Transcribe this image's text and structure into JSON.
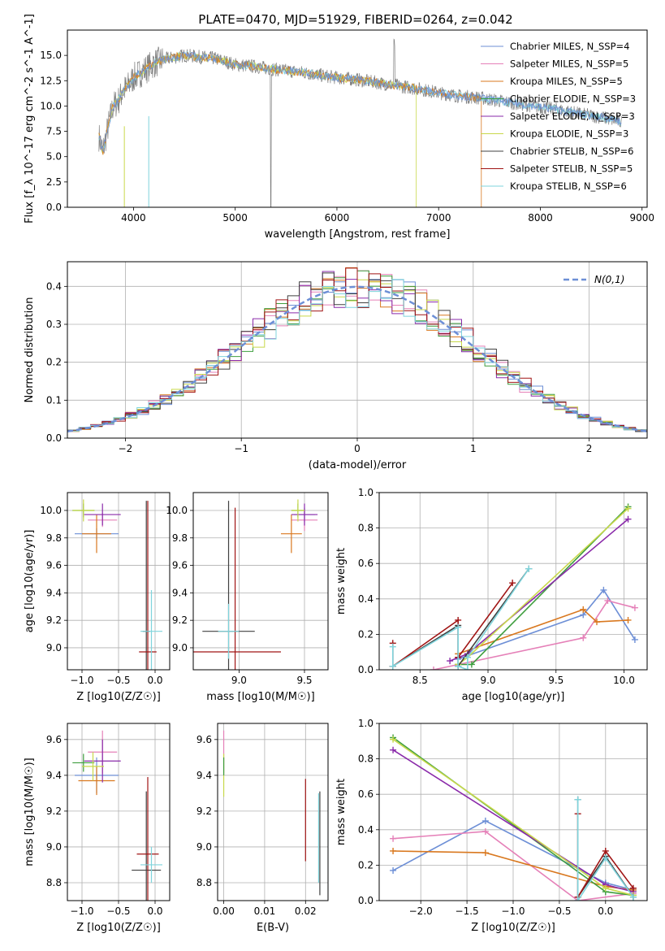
{
  "colors": [
    "#6d8fd6",
    "#e580b8",
    "#d9781f",
    "#3e9e3e",
    "#8a2aaa",
    "#c8d84a",
    "#404040",
    "#a01414",
    "#7fd4dc"
  ],
  "figure": {
    "title": "PLATE=0470, MJD=51929, FIBERID=0264, z=0.042",
    "legend": [
      "Chabrier MILES, N_SSP=4",
      "Salpeter MILES, N_SSP=5",
      "Kroupa MILES, N_SSP=5",
      "Chabrier ELODIE, N_SSP=3",
      "Salpeter ELODIE, N_SSP=3",
      "Kroupa ELODIE, N_SSP=3",
      "Chabrier STELIB, N_SSP=6",
      "Salpeter STELIB, N_SSP=5",
      "Kroupa STELIB, N_SSP=6"
    ]
  },
  "chart_data": [
    {
      "id": "spectrum",
      "type": "line",
      "xlabel": "wavelength [Angstrom, rest frame]",
      "ylabel": "Flux [f_λ 10^-17 erg cm^-2 s^-1 A^-1]",
      "xlim": [
        3350,
        9050
      ],
      "ylim": [
        0,
        17.5
      ],
      "xticks": [
        "4000",
        "5000",
        "6000",
        "7000",
        "8000",
        "9000"
      ],
      "yticks": [
        "0.0",
        "2.5",
        "5.0",
        "7.5",
        "10.0",
        "12.5",
        "15.0"
      ],
      "data_x": [
        3660,
        3700,
        3750,
        3800,
        3850,
        3900,
        3950,
        4000,
        4100,
        4200,
        4300,
        4400,
        4500,
        4600,
        4700,
        4800,
        4900,
        5000,
        5200,
        5400,
        5600,
        5800,
        6000,
        6200,
        6400,
        6600,
        6800,
        7000,
        7200,
        7400,
        7600,
        7800,
        8000,
        8200,
        8400,
        8600,
        8800
      ],
      "data_y": [
        7.0,
        5.5,
        8.0,
        10.0,
        10.5,
        11.5,
        12.0,
        12.8,
        13.5,
        14.2,
        14.6,
        14.8,
        15.0,
        14.9,
        14.8,
        14.7,
        14.4,
        14.1,
        13.9,
        13.6,
        13.4,
        13.1,
        12.8,
        12.6,
        12.3,
        12.0,
        11.7,
        11.3,
        11.0,
        10.8,
        10.5,
        10.2,
        9.9,
        9.6,
        9.2,
        8.9,
        8.4
      ],
      "grid": false
    },
    {
      "id": "residuals",
      "type": "step",
      "xlabel": "(data-model)/error",
      "ylabel": "Normed distribution",
      "xlim": [
        -2.5,
        2.5
      ],
      "ylim": [
        0,
        0.465
      ],
      "xticks": [
        "−2",
        "−1",
        "0",
        "1",
        "2"
      ],
      "yticks": [
        "0.0",
        "0.1",
        "0.2",
        "0.3",
        "0.4"
      ],
      "gaussian_label": "N(0,1)",
      "grid": true
    },
    {
      "id": "age-vs-Z",
      "type": "errorbar",
      "xlabel": "Z [log10(Z/Z☉)]",
      "ylabel": "age [log10(age/yr)]",
      "xlim": [
        -1.2,
        0.2
      ],
      "ylim": [
        8.84,
        10.13
      ],
      "xticks": [
        "−1.0",
        "−0.5",
        "0.0"
      ],
      "yticks": [
        "9.0",
        "9.2",
        "9.4",
        "9.6",
        "9.8",
        "10.0"
      ],
      "points": [
        {
          "c": 0,
          "x": -0.8,
          "y": 9.83,
          "xe": 0.3,
          "ye": 0.04
        },
        {
          "c": 1,
          "x": -0.72,
          "y": 9.93,
          "xe": 0.2,
          "ye": 0.05
        },
        {
          "c": 2,
          "x": -0.8,
          "y": 9.83,
          "xe": 0.2,
          "ye": 0.14
        },
        {
          "c": 3,
          "x": -0.98,
          "y": 10.0,
          "xe": 0.15,
          "ye": 0.05
        },
        {
          "c": 4,
          "x": -0.72,
          "y": 9.97,
          "xe": 0.25,
          "ye": 0.08
        },
        {
          "c": 5,
          "x": -0.98,
          "y": 10.0,
          "xe": 0.15,
          "ye": 0.08
        },
        {
          "c": 6,
          "x": -0.12,
          "y": 9.12,
          "xe": 0.05,
          "ye": 0.95
        },
        {
          "c": 7,
          "x": -0.1,
          "y": 8.97,
          "xe": 0.12,
          "ye": 1.1
        },
        {
          "c": 8,
          "x": -0.05,
          "y": 9.12,
          "xe": 0.15,
          "ye": 0.3
        }
      ],
      "grid": true
    },
    {
      "id": "age-vs-mass",
      "type": "errorbar",
      "xlabel": "mass [log10(M/M☉)]",
      "ylabel": "",
      "xlim": [
        8.65,
        9.68
      ],
      "ylim": [
        8.84,
        10.13
      ],
      "xticks": [
        "9.0",
        "9.5"
      ],
      "yticks": [
        "9.0",
        "9.2",
        "9.4",
        "9.6",
        "9.8",
        "10.0"
      ],
      "points": [
        {
          "c": 0,
          "x": 9.5,
          "y": 9.97,
          "xe": 0.08,
          "ye": 0.05
        },
        {
          "c": 1,
          "x": 9.5,
          "y": 9.93,
          "xe": 0.1,
          "ye": 0.08
        },
        {
          "c": 2,
          "x": 9.4,
          "y": 9.83,
          "xe": 0.08,
          "ye": 0.14
        },
        {
          "c": 3,
          "x": 9.45,
          "y": 10.0,
          "xe": 0.05,
          "ye": 0.05
        },
        {
          "c": 4,
          "x": 9.5,
          "y": 9.97,
          "xe": 0.1,
          "ye": 0.08
        },
        {
          "c": 5,
          "x": 9.45,
          "y": 10.0,
          "xe": 0.05,
          "ye": 0.08
        },
        {
          "c": 6,
          "x": 8.92,
          "y": 9.12,
          "xe": 0.2,
          "ye": 0.95
        },
        {
          "c": 7,
          "x": 8.97,
          "y": 8.97,
          "xe": 0.35,
          "ye": 1.05
        },
        {
          "c": 8,
          "x": 8.92,
          "y": 9.12,
          "xe": 0.08,
          "ye": 0.2
        }
      ],
      "grid": true
    },
    {
      "id": "weight-vs-age",
      "type": "line",
      "xlabel": "age [log10(age/yr)]",
      "ylabel": "mass weight",
      "xlim": [
        8.2,
        10.17
      ],
      "ylim": [
        0,
        1
      ],
      "xticks": [
        "8.5",
        "9.0",
        "9.5",
        "10.0"
      ],
      "yticks": [
        "0.0",
        "0.2",
        "0.4",
        "0.6",
        "0.8",
        "1.0"
      ],
      "series": [
        {
          "c": 0,
          "x": [
            8.78,
            9.7,
            9.85,
            10.08
          ],
          "y": [
            0.06,
            0.31,
            0.45,
            0.17
          ]
        },
        {
          "c": 1,
          "x": [
            8.6,
            9.7,
            9.88,
            10.08
          ],
          "y": [
            0.0,
            0.18,
            0.39,
            0.35
          ]
        },
        {
          "c": 2,
          "x": [
            8.78,
            9.7,
            9.8,
            10.03
          ],
          "y": [
            0.09,
            0.34,
            0.27,
            0.28
          ]
        },
        {
          "c": 3,
          "x": [
            8.78,
            8.88,
            10.03
          ],
          "y": [
            0.03,
            0.03,
            0.92
          ]
        },
        {
          "c": 4,
          "x": [
            8.72,
            8.85,
            10.03
          ],
          "y": [
            0.05,
            0.09,
            0.85
          ]
        },
        {
          "c": 5,
          "x": [
            8.78,
            8.85,
            10.03
          ],
          "y": [
            0.03,
            0.07,
            0.91
          ]
        },
        {
          "c": 6,
          "x": [
            8.3,
            8.78,
            8.78,
            9.3
          ],
          "y": [
            0.02,
            0.25,
            0.02,
            0.57
          ]
        },
        {
          "c": 7,
          "x": [
            8.3,
            8.3,
            8.78,
            8.78,
            9.18
          ],
          "y": [
            0.15,
            0.02,
            0.28,
            0.07,
            0.49
          ]
        },
        {
          "c": 8,
          "x": [
            8.3,
            8.3,
            8.78,
            8.78,
            8.85,
            8.85,
            9.3
          ],
          "y": [
            0.13,
            0.02,
            0.24,
            0.02,
            0.0,
            0.07,
            0.57
          ]
        }
      ],
      "grid": true
    },
    {
      "id": "mass-vs-Z",
      "type": "errorbar",
      "xlabel": "Z [log10(Z/Z☉)]",
      "ylabel": "mass [log10(M/M☉)]",
      "xlim": [
        -1.2,
        0.2
      ],
      "ylim": [
        8.7,
        9.69
      ],
      "xticks": [
        "−1.0",
        "−0.5",
        "0.0"
      ],
      "yticks": [
        "8.8",
        "9.0",
        "9.2",
        "9.4",
        "9.6"
      ],
      "points": [
        {
          "c": 0,
          "x": -0.8,
          "y": 9.4,
          "xe": 0.3,
          "ye": 0.1
        },
        {
          "c": 1,
          "x": -0.72,
          "y": 9.53,
          "xe": 0.2,
          "ye": 0.12
        },
        {
          "c": 2,
          "x": -0.8,
          "y": 9.37,
          "xe": 0.25,
          "ye": 0.08
        },
        {
          "c": 3,
          "x": -0.98,
          "y": 9.47,
          "xe": 0.15,
          "ye": 0.05
        },
        {
          "c": 4,
          "x": -0.72,
          "y": 9.48,
          "xe": 0.25,
          "ye": 0.12
        },
        {
          "c": 5,
          "x": -0.85,
          "y": 9.45,
          "xe": 0.15,
          "ye": 0.08
        },
        {
          "c": 6,
          "x": -0.12,
          "y": 8.87,
          "xe": 0.2,
          "ye": 0.44
        },
        {
          "c": 7,
          "x": -0.1,
          "y": 8.96,
          "xe": 0.15,
          "ye": 0.43
        },
        {
          "c": 8,
          "x": -0.05,
          "y": 8.9,
          "xe": 0.15,
          "ye": 0.1
        }
      ],
      "grid": true
    },
    {
      "id": "mass-vs-EBV",
      "type": "errorbar",
      "xlabel": "E(B-V)",
      "ylabel": "",
      "xlim": [
        -0.0015,
        0.0255
      ],
      "ylim": [
        8.7,
        9.69
      ],
      "xticks": [
        "0.00",
        "0.01",
        "0.02"
      ],
      "yticks": [
        "8.8",
        "9.0",
        "9.2",
        "9.4",
        "9.6"
      ],
      "points": [
        {
          "c": 1,
          "x": 0.0,
          "y": 9.53,
          "xe": 0.0,
          "ye": 0.12
        },
        {
          "c": 5,
          "x": 0.0,
          "y": 9.4,
          "xe": 0.0,
          "ye": 0.12
        },
        {
          "c": 3,
          "x": 0.0,
          "y": 9.45,
          "xe": 0.0,
          "ye": 0.05
        },
        {
          "c": 7,
          "x": 0.02,
          "y": 9.15,
          "xe": 0.0,
          "ye": 0.23
        },
        {
          "c": 6,
          "x": 0.0235,
          "y": 9.02,
          "xe": 0.0,
          "ye": 0.29
        },
        {
          "c": 8,
          "x": 0.0232,
          "y": 9.05,
          "xe": 0.0,
          "ye": 0.25
        }
      ],
      "grid": true
    },
    {
      "id": "weight-vs-Z",
      "type": "line",
      "xlabel": "Z [log10(Z/Z☉)]",
      "ylabel": "mass weight",
      "xlim": [
        -2.45,
        0.45
      ],
      "ylim": [
        0,
        1
      ],
      "xticks": [
        "−2.0",
        "−1.5",
        "−1.0",
        "−0.5",
        "0.0"
      ],
      "yticks": [
        "0.0",
        "0.2",
        "0.4",
        "0.6",
        "0.8",
        "1.0"
      ],
      "series": [
        {
          "c": 0,
          "x": [
            -2.3,
            -1.3,
            0.0,
            0.3
          ],
          "y": [
            0.17,
            0.45,
            0.1,
            0.06
          ]
        },
        {
          "c": 1,
          "x": [
            -2.3,
            -1.3,
            -0.3,
            0.3
          ],
          "y": [
            0.35,
            0.39,
            0.0,
            0.04
          ]
        },
        {
          "c": 2,
          "x": [
            -2.3,
            -1.3,
            0.0,
            0.3
          ],
          "y": [
            0.28,
            0.27,
            0.08,
            0.06
          ]
        },
        {
          "c": 3,
          "x": [
            -2.3,
            0.0,
            0.3
          ],
          "y": [
            0.92,
            0.05,
            0.03
          ]
        },
        {
          "c": 4,
          "x": [
            -2.3,
            0.0,
            0.3
          ],
          "y": [
            0.85,
            0.09,
            0.05
          ]
        },
        {
          "c": 5,
          "x": [
            -2.3,
            0.0,
            0.3
          ],
          "y": [
            0.91,
            0.07,
            0.03
          ]
        },
        {
          "c": 6,
          "x": [
            -0.3,
            -0.3,
            0.0,
            0.3
          ],
          "y": [
            0.57,
            0.02,
            0.25,
            0.02
          ]
        },
        {
          "c": 7,
          "x": [
            -0.3,
            -0.3,
            0.0,
            0.3
          ],
          "y": [
            0.49,
            0.02,
            0.28,
            0.07
          ]
        },
        {
          "c": 8,
          "x": [
            -0.3,
            -0.3,
            0.0,
            0.3
          ],
          "y": [
            0.57,
            0.0,
            0.24,
            0.02
          ]
        }
      ],
      "grid": true
    }
  ]
}
